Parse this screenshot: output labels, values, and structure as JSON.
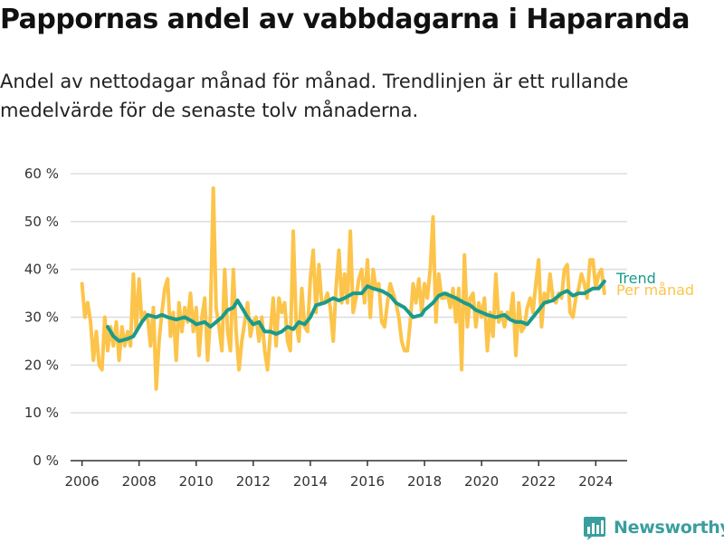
{
  "header": {
    "title": "Pappornas andel av vabbdagarna i Haparanda",
    "subtitle": "Andel av nettodagar månad för månad. Trendlinjen är ett rullande medelvärde för de senaste tolv månaderna."
  },
  "brand": {
    "name": "Newsworthy",
    "icon": "newsworthy-chart-icon",
    "color": "#3a9e9e"
  },
  "colors": {
    "monthly": "#fcc44a",
    "trend": "#1a9a8c",
    "grid": "#dddddd",
    "axis": "#333333"
  },
  "chart_data": {
    "type": "line",
    "title": "Pappornas andel av vabbdagarna i Haparanda",
    "xlabel": "",
    "ylabel": "",
    "xlim": [
      2005.6,
      2025.1
    ],
    "ylim": [
      0,
      60
    ],
    "x_ticks": [
      2006,
      2008,
      2010,
      2012,
      2014,
      2016,
      2018,
      2020,
      2022,
      2024
    ],
    "y_ticks": [
      {
        "value": 0,
        "label": "0 %"
      },
      {
        "value": 10,
        "label": "10 %"
      },
      {
        "value": 20,
        "label": "20 %"
      },
      {
        "value": 30,
        "label": "30 %"
      },
      {
        "value": 40,
        "label": "40 %"
      },
      {
        "value": 50,
        "label": "50 %"
      },
      {
        "value": 60,
        "label": "60 %"
      }
    ],
    "grid": true,
    "legend": "inline-right",
    "series": [
      {
        "name": "Per månad",
        "color": "#fcc44a",
        "points": [
          [
            2006.0,
            37
          ],
          [
            2006.1,
            30
          ],
          [
            2006.2,
            33
          ],
          [
            2006.3,
            29
          ],
          [
            2006.4,
            21
          ],
          [
            2006.5,
            27
          ],
          [
            2006.6,
            20
          ],
          [
            2006.7,
            19
          ],
          [
            2006.8,
            30
          ],
          [
            2006.9,
            23
          ],
          [
            2007.0,
            28
          ],
          [
            2007.1,
            24
          ],
          [
            2007.2,
            29
          ],
          [
            2007.3,
            21
          ],
          [
            2007.4,
            28
          ],
          [
            2007.5,
            24
          ],
          [
            2007.6,
            27
          ],
          [
            2007.7,
            24
          ],
          [
            2007.8,
            39
          ],
          [
            2007.9,
            27
          ],
          [
            2008.0,
            38
          ],
          [
            2008.1,
            29
          ],
          [
            2008.2,
            31
          ],
          [
            2008.3,
            30
          ],
          [
            2008.4,
            24
          ],
          [
            2008.5,
            32
          ],
          [
            2008.6,
            15
          ],
          [
            2008.7,
            25
          ],
          [
            2008.8,
            31
          ],
          [
            2008.9,
            36
          ],
          [
            2009.0,
            38
          ],
          [
            2009.1,
            26
          ],
          [
            2009.2,
            31
          ],
          [
            2009.3,
            21
          ],
          [
            2009.4,
            33
          ],
          [
            2009.5,
            27
          ],
          [
            2009.6,
            32
          ],
          [
            2009.7,
            29
          ],
          [
            2009.8,
            35
          ],
          [
            2009.9,
            27
          ],
          [
            2010.0,
            32
          ],
          [
            2010.1,
            22
          ],
          [
            2010.2,
            30
          ],
          [
            2010.3,
            34
          ],
          [
            2010.4,
            21
          ],
          [
            2010.5,
            30
          ],
          [
            2010.6,
            57
          ],
          [
            2010.7,
            32
          ],
          [
            2010.8,
            28
          ],
          [
            2010.9,
            23
          ],
          [
            2011.0,
            40
          ],
          [
            2011.1,
            27
          ],
          [
            2011.2,
            23
          ],
          [
            2011.3,
            40
          ],
          [
            2011.4,
            27
          ],
          [
            2011.5,
            19
          ],
          [
            2011.6,
            25
          ],
          [
            2011.7,
            29
          ],
          [
            2011.8,
            33
          ],
          [
            2011.9,
            26
          ],
          [
            2012.0,
            29
          ],
          [
            2012.1,
            30
          ],
          [
            2012.2,
            25
          ],
          [
            2012.3,
            30
          ],
          [
            2012.4,
            23
          ],
          [
            2012.5,
            19
          ],
          [
            2012.6,
            27
          ],
          [
            2012.7,
            34
          ],
          [
            2012.8,
            24
          ],
          [
            2012.9,
            34
          ],
          [
            2013.0,
            31
          ],
          [
            2013.1,
            33
          ],
          [
            2013.2,
            25
          ],
          [
            2013.3,
            23
          ],
          [
            2013.4,
            48
          ],
          [
            2013.5,
            29
          ],
          [
            2013.6,
            25
          ],
          [
            2013.7,
            36
          ],
          [
            2013.8,
            28
          ],
          [
            2013.9,
            27
          ],
          [
            2014.0,
            38
          ],
          [
            2014.1,
            44
          ],
          [
            2014.2,
            31
          ],
          [
            2014.3,
            41
          ],
          [
            2014.4,
            33
          ],
          [
            2014.5,
            33
          ],
          [
            2014.6,
            35
          ],
          [
            2014.7,
            32
          ],
          [
            2014.8,
            25
          ],
          [
            2014.9,
            36
          ],
          [
            2015.0,
            44
          ],
          [
            2015.1,
            33
          ],
          [
            2015.2,
            39
          ],
          [
            2015.3,
            33
          ],
          [
            2015.4,
            48
          ],
          [
            2015.5,
            31
          ],
          [
            2015.6,
            34
          ],
          [
            2015.7,
            38
          ],
          [
            2015.8,
            40
          ],
          [
            2015.9,
            33
          ],
          [
            2016.0,
            42
          ],
          [
            2016.1,
            30
          ],
          [
            2016.2,
            40
          ],
          [
            2016.3,
            36
          ],
          [
            2016.4,
            37
          ],
          [
            2016.5,
            29
          ],
          [
            2016.6,
            28
          ],
          [
            2016.7,
            33
          ],
          [
            2016.8,
            37
          ],
          [
            2016.9,
            35
          ],
          [
            2017.0,
            33
          ],
          [
            2017.1,
            30
          ],
          [
            2017.2,
            25
          ],
          [
            2017.3,
            23
          ],
          [
            2017.4,
            23
          ],
          [
            2017.5,
            29
          ],
          [
            2017.6,
            37
          ],
          [
            2017.7,
            33
          ],
          [
            2017.8,
            38
          ],
          [
            2017.9,
            31
          ],
          [
            2018.0,
            37
          ],
          [
            2018.1,
            34
          ],
          [
            2018.2,
            40
          ],
          [
            2018.3,
            51
          ],
          [
            2018.4,
            29
          ],
          [
            2018.5,
            39
          ],
          [
            2018.6,
            34
          ],
          [
            2018.7,
            34
          ],
          [
            2018.8,
            35
          ],
          [
            2018.9,
            32
          ],
          [
            2019.0,
            36
          ],
          [
            2019.1,
            29
          ],
          [
            2019.2,
            36
          ],
          [
            2019.3,
            19
          ],
          [
            2019.4,
            43
          ],
          [
            2019.5,
            28
          ],
          [
            2019.6,
            34
          ],
          [
            2019.7,
            35
          ],
          [
            2019.8,
            28
          ],
          [
            2019.9,
            33
          ],
          [
            2020.0,
            30
          ],
          [
            2020.1,
            34
          ],
          [
            2020.2,
            23
          ],
          [
            2020.3,
            31
          ],
          [
            2020.4,
            26
          ],
          [
            2020.5,
            39
          ],
          [
            2020.6,
            29
          ],
          [
            2020.7,
            31
          ],
          [
            2020.8,
            28
          ],
          [
            2020.9,
            31
          ],
          [
            2021.0,
            30
          ],
          [
            2021.1,
            35
          ],
          [
            2021.2,
            22
          ],
          [
            2021.3,
            33
          ],
          [
            2021.4,
            27
          ],
          [
            2021.5,
            28
          ],
          [
            2021.6,
            32
          ],
          [
            2021.7,
            34
          ],
          [
            2021.8,
            31
          ],
          [
            2021.9,
            37
          ],
          [
            2022.0,
            42
          ],
          [
            2022.1,
            28
          ],
          [
            2022.2,
            35
          ],
          [
            2022.3,
            33
          ],
          [
            2022.4,
            39
          ],
          [
            2022.5,
            34
          ],
          [
            2022.6,
            33
          ],
          [
            2022.7,
            35
          ],
          [
            2022.8,
            34
          ],
          [
            2022.9,
            40
          ],
          [
            2023.0,
            41
          ],
          [
            2023.1,
            31
          ],
          [
            2023.2,
            30
          ],
          [
            2023.3,
            34
          ],
          [
            2023.4,
            36
          ],
          [
            2023.5,
            39
          ],
          [
            2023.6,
            37
          ],
          [
            2023.7,
            34
          ],
          [
            2023.8,
            42
          ],
          [
            2023.9,
            42
          ],
          [
            2024.0,
            36
          ],
          [
            2024.1,
            39
          ],
          [
            2024.2,
            40
          ],
          [
            2024.3,
            35
          ]
        ]
      },
      {
        "name": "Trend",
        "color": "#1a9a8c",
        "points": [
          [
            2006.9,
            28
          ],
          [
            2007.1,
            26
          ],
          [
            2007.3,
            25
          ],
          [
            2007.6,
            25.5
          ],
          [
            2007.8,
            26
          ],
          [
            2008.1,
            29
          ],
          [
            2008.3,
            30.5
          ],
          [
            2008.6,
            30
          ],
          [
            2008.8,
            30.5
          ],
          [
            2009.0,
            30
          ],
          [
            2009.3,
            29.5
          ],
          [
            2009.6,
            30
          ],
          [
            2009.9,
            29
          ],
          [
            2010.0,
            28.5
          ],
          [
            2010.3,
            29
          ],
          [
            2010.5,
            28
          ],
          [
            2010.7,
            29
          ],
          [
            2010.9,
            30
          ],
          [
            2011.1,
            31.5
          ],
          [
            2011.3,
            32
          ],
          [
            2011.45,
            33.5
          ],
          [
            2011.6,
            32
          ],
          [
            2011.8,
            30
          ],
          [
            2012.0,
            28.5
          ],
          [
            2012.2,
            29
          ],
          [
            2012.4,
            27
          ],
          [
            2012.6,
            27
          ],
          [
            2012.8,
            26.5
          ],
          [
            2013.0,
            27
          ],
          [
            2013.2,
            28
          ],
          [
            2013.4,
            27.5
          ],
          [
            2013.6,
            29
          ],
          [
            2013.8,
            28.5
          ],
          [
            2014.0,
            30
          ],
          [
            2014.2,
            32.5
          ],
          [
            2014.5,
            33
          ],
          [
            2014.8,
            34
          ],
          [
            2015.0,
            33.5
          ],
          [
            2015.2,
            34
          ],
          [
            2015.5,
            35
          ],
          [
            2015.8,
            35
          ],
          [
            2016.0,
            36.5
          ],
          [
            2016.2,
            36
          ],
          [
            2016.5,
            35.5
          ],
          [
            2016.8,
            34.5
          ],
          [
            2017.0,
            33
          ],
          [
            2017.3,
            32
          ],
          [
            2017.6,
            30
          ],
          [
            2017.9,
            30.5
          ],
          [
            2018.0,
            31.5
          ],
          [
            2018.3,
            33
          ],
          [
            2018.5,
            34.5
          ],
          [
            2018.7,
            35
          ],
          [
            2018.9,
            34.5
          ],
          [
            2019.1,
            34
          ],
          [
            2019.4,
            33
          ],
          [
            2019.6,
            32.5
          ],
          [
            2019.8,
            31.5
          ],
          [
            2020.0,
            31
          ],
          [
            2020.2,
            30.5
          ],
          [
            2020.5,
            30
          ],
          [
            2020.8,
            30.5
          ],
          [
            2021.0,
            29.5
          ],
          [
            2021.2,
            29
          ],
          [
            2021.4,
            29
          ],
          [
            2021.6,
            28.5
          ],
          [
            2021.8,
            30
          ],
          [
            2022.0,
            31.5
          ],
          [
            2022.2,
            33
          ],
          [
            2022.5,
            33.5
          ],
          [
            2022.8,
            35
          ],
          [
            2023.0,
            35.5
          ],
          [
            2023.2,
            34.5
          ],
          [
            2023.4,
            35
          ],
          [
            2023.6,
            35
          ],
          [
            2023.9,
            36
          ],
          [
            2024.1,
            36
          ],
          [
            2024.3,
            37.5
          ]
        ]
      }
    ]
  }
}
